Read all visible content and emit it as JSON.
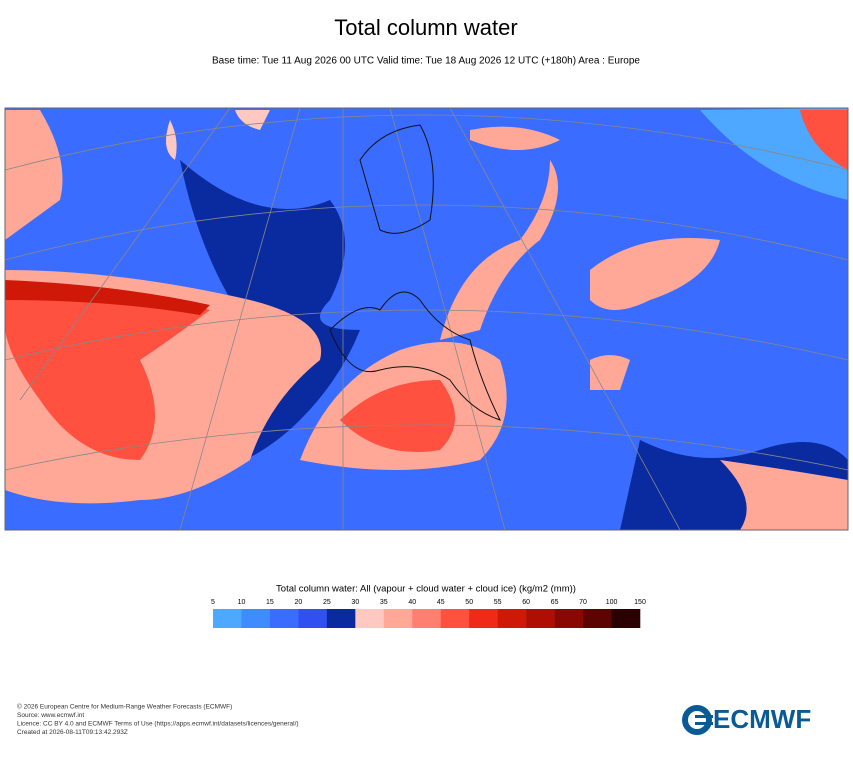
{
  "header": {
    "title": "Total column water",
    "subtitle": "Base time: Tue 11 Aug 2026 00 UTC Valid time: Tue 18 Aug 2026 12 UTC (+180h) Area : Europe"
  },
  "colorbar": {
    "label": "Total column water: All (vapour + cloud water + cloud ice) (kg/m2 (mm))",
    "ticks": [
      5,
      10,
      15,
      20,
      25,
      30,
      35,
      40,
      45,
      50,
      55,
      60,
      65,
      70,
      100,
      150
    ],
    "colors": [
      "#4ea8ff",
      "#3f8cff",
      "#3a6cff",
      "#3050f0",
      "#0a2aa0",
      "#ffc8c0",
      "#ffa898",
      "#ff8070",
      "#ff5040",
      "#f02a18",
      "#d01808",
      "#b00e04",
      "#8a0802",
      "#5c0400",
      "#2a0000"
    ]
  },
  "footer": {
    "lines": [
      "© 2026 European Centre for Medium-Range Weather Forecasts (ECMWF)",
      "Source: www.ecmwf.int",
      "Licence: CC BY 4.0 and ECMWF Terms of Use (https://apps.ecmwf.int/datasets/licences/general/)",
      "Created at 2026-08-11T09:13:42.293Z"
    ],
    "logo": "ECMWF"
  }
}
